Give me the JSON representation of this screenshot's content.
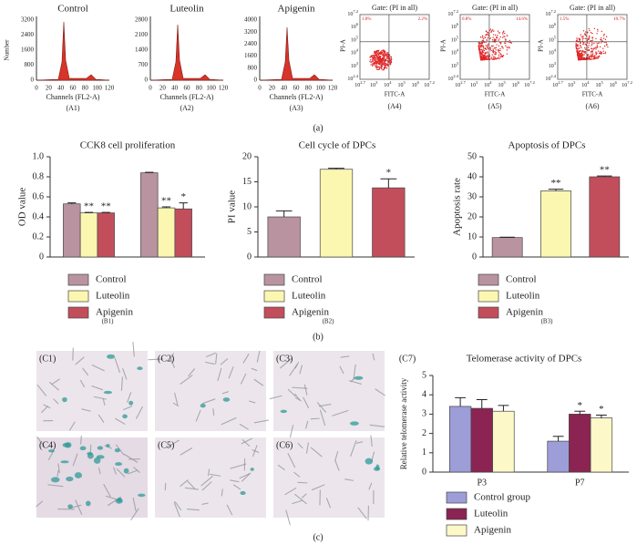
{
  "figure": {
    "panel_a": "(a)",
    "panel_b": "(b)",
    "panel_c": "(c)"
  },
  "histograms": [
    {
      "title": "Control",
      "ylabel": "Number",
      "yticks": [
        "0",
        "800",
        "1600",
        "2400",
        "3200"
      ],
      "label": "(A1)"
    },
    {
      "title": "Luteolin",
      "yticks": [
        "0",
        "700",
        "1400",
        "2100",
        "2800"
      ],
      "label": "(A2)"
    },
    {
      "title": "Apigenin",
      "yticks": [
        "0",
        "800",
        "1600",
        "2400",
        "3200",
        "4000"
      ],
      "label": "(A3)"
    }
  ],
  "histogram_axes": {
    "xlabel": "Channels (FL2-A)",
    "xticks": [
      "0",
      "20",
      "40",
      "60",
      "80",
      "100",
      "120"
    ]
  },
  "scatters": [
    {
      "title": "Gate: (PI in all)",
      "ul": "1.8%",
      "ur": "2.2%",
      "label": "(A4)"
    },
    {
      "title": "Gate: (PI in all)",
      "ul": "0.8%",
      "ur": "14.6%",
      "label": "(A5)"
    },
    {
      "title": "Gate: (PI in all)",
      "ul": "1.5%",
      "ur": "10.7%",
      "label": "(A6)"
    }
  ],
  "scatter_axes": {
    "xlabel": "FITC-A",
    "ylabel": "PI-A",
    "xticks": [
      {
        "base": "10",
        "exp": "2.7"
      },
      {
        "base": "10",
        "exp": "3"
      },
      {
        "base": "10",
        "exp": "4"
      },
      {
        "base": "10",
        "exp": "5"
      },
      {
        "base": "10",
        "exp": "6"
      },
      {
        "base": "10",
        "exp": "7.2"
      }
    ],
    "yticks": [
      {
        "base": "10",
        "exp": "2.4"
      },
      {
        "base": "10",
        "exp": "3"
      },
      {
        "base": "10",
        "exp": "4"
      },
      {
        "base": "10",
        "exp": "5"
      },
      {
        "base": "10",
        "exp": "6"
      },
      {
        "base": "10",
        "exp": "7.2"
      }
    ]
  },
  "micrographs": [
    "(C1)",
    "(C2)",
    "(C3)",
    "(C4)",
    "(C5)",
    "(C6)"
  ],
  "chart_data": [
    {
      "type": "bar",
      "title": "CCK8 cell proliferation",
      "ylabel": "OD value",
      "label": "(B1)",
      "categories": [
        null,
        null
      ],
      "series": [
        {
          "name": "Control",
          "color": "#b9939f",
          "values": [
            0.53,
            0.84
          ],
          "errors": [
            0.01,
            0.005
          ],
          "stars": [
            null,
            null
          ]
        },
        {
          "name": "Luteolin",
          "color": "#fcf7b0",
          "values": [
            0.44,
            0.49
          ],
          "errors": [
            0.005,
            0.01
          ],
          "stars": [
            "**",
            "**"
          ]
        },
        {
          "name": "Apigenin",
          "color": "#c24e5c",
          "values": [
            0.44,
            0.48
          ],
          "errors": [
            0.005,
            0.06
          ],
          "stars": [
            "**",
            "*"
          ]
        }
      ],
      "ylim": [
        0,
        1
      ],
      "yticks": [
        0,
        0.2,
        0.4,
        0.6,
        0.8,
        {
          "value": 1,
          "label": "1.0"
        }
      ]
    },
    {
      "type": "bar",
      "title": "Cell cycle of DPCs",
      "ylabel": "PI value",
      "label": "(B2)",
      "categories": [
        "Control",
        "Luteolin",
        "Apigenin"
      ],
      "colors": [
        "#b9939f",
        "#fcf7b0",
        "#c24e5c"
      ],
      "values": [
        8,
        17.5,
        13.8
      ],
      "errors": [
        1.2,
        0.2,
        1.8
      ],
      "stars": [
        null,
        null,
        "*"
      ],
      "ylim": [
        0,
        20
      ],
      "yticks": [
        0,
        5,
        10,
        15,
        20
      ]
    },
    {
      "type": "bar",
      "title": "Apoptosis of DPCs",
      "ylabel": "Apoptosis rate",
      "label": "(B3)",
      "categories": [
        "Control",
        "Luteolin",
        "Apigenin"
      ],
      "colors": [
        "#b9939f",
        "#fcf7b0",
        "#c24e5c"
      ],
      "values": [
        9.7,
        33,
        40
      ],
      "errors": [
        0.2,
        0.8,
        0.4
      ],
      "stars": [
        null,
        "**",
        "**"
      ],
      "ylim": [
        0,
        50
      ],
      "yticks": [
        0,
        10,
        20,
        30,
        40,
        50
      ]
    },
    {
      "type": "bar",
      "title": "Telomerase activity of DPCs",
      "ylabel": "Relative telomerase activity",
      "label": "(C7)",
      "categories": [
        "P3",
        "P7"
      ],
      "series": [
        {
          "name": "Control group",
          "color": "#9d9dd8",
          "values": [
            3.4,
            1.6
          ],
          "errors": [
            0.45,
            0.25
          ],
          "stars": [
            null,
            null
          ]
        },
        {
          "name": "Luteolin",
          "color": "#8b2452",
          "values": [
            3.3,
            3.0
          ],
          "errors": [
            0.45,
            0.15
          ],
          "stars": [
            null,
            "*"
          ]
        },
        {
          "name": "Apigenin",
          "color": "#fdf8c8",
          "values": [
            3.15,
            2.8
          ],
          "errors": [
            0.3,
            0.15
          ],
          "stars": [
            null,
            "*"
          ]
        }
      ],
      "ylim": [
        0,
        5
      ],
      "yticks": [
        0,
        1,
        2,
        3,
        4,
        5
      ]
    }
  ]
}
